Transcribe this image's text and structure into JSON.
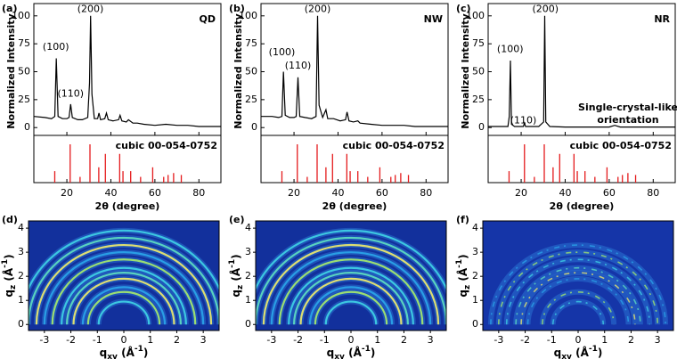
{
  "chart_data": [
    {
      "type": "line",
      "panel": "(a)",
      "sample": "QD",
      "peak_labels": [
        "(100)",
        "(110)",
        "(200)"
      ],
      "y_label": "Normalized Intensity",
      "x_label": "2θ (degree)",
      "color": "#000000",
      "x": [
        5,
        10,
        13,
        14.5,
        15.2,
        16,
        18,
        20,
        21,
        21.7,
        22.5,
        25,
        27,
        29.5,
        30.3,
        30.8,
        31.4,
        32.5,
        34,
        34.6,
        35.3,
        37.2,
        38,
        38.8,
        41,
        43.5,
        44.2,
        45,
        47,
        48,
        50,
        52,
        55,
        60,
        65,
        70,
        75,
        80,
        85,
        90
      ],
      "values": [
        10,
        9,
        8,
        10,
        62,
        10,
        8,
        8,
        9,
        21,
        9,
        7,
        7,
        9,
        40,
        100,
        30,
        8,
        8,
        13,
        7,
        8,
        13,
        7,
        6,
        7,
        11,
        6,
        5,
        7,
        4,
        4,
        3,
        2,
        3,
        2,
        2,
        1,
        1,
        1
      ],
      "xlim": [
        5,
        90
      ],
      "ylim": [
        -7,
        111
      ],
      "xticks": [
        20,
        40,
        60,
        80
      ],
      "yticks": [
        0,
        25,
        50,
        75,
        100
      ],
      "reference": {
        "name": "cubic 00-054-0752",
        "color": "#e41a1c",
        "ylim": [
          0,
          100
        ],
        "x": [
          14.5,
          21.5,
          26,
          30.5,
          34.5,
          37.5,
          44,
          45.5,
          49,
          53.5,
          59,
          64,
          66,
          68.5,
          72
        ],
        "values": [
          30,
          100,
          15,
          100,
          40,
          75,
          75,
          30,
          30,
          15,
          40,
          15,
          20,
          25,
          20
        ]
      }
    },
    {
      "type": "line",
      "panel": "(b)",
      "sample": "NW",
      "peak_labels": [
        "(100)",
        "(110)",
        "(200)"
      ],
      "y_label": "Normalized Intensity",
      "x_label": "2θ (degree)",
      "color": "#000000",
      "x": [
        5,
        10,
        13,
        14.5,
        15.2,
        16,
        18,
        20,
        21,
        21.8,
        22.6,
        25,
        28,
        30,
        30.7,
        31.4,
        33,
        34.5,
        35.3,
        38,
        41,
        43.4,
        44.1,
        45,
        47,
        49,
        50,
        55,
        60,
        65,
        70,
        75,
        80,
        85,
        90
      ],
      "values": [
        10,
        10,
        9,
        10,
        50,
        11,
        9,
        9,
        10,
        45,
        10,
        9,
        8,
        10,
        100,
        20,
        9,
        16,
        8,
        8,
        6,
        7,
        14,
        6,
        5,
        6,
        4,
        3,
        2,
        2,
        2,
        1,
        1,
        1,
        1
      ],
      "xlim": [
        5,
        90
      ],
      "ylim": [
        -7,
        111
      ],
      "xticks": [
        20,
        40,
        60,
        80
      ],
      "yticks": [
        0,
        25,
        50,
        75,
        100
      ],
      "reference": {
        "name": "cubic 00-054-0752",
        "color": "#e41a1c",
        "ylim": [
          0,
          100
        ],
        "x": [
          14.5,
          21.5,
          26,
          30.5,
          34.5,
          37.5,
          44,
          45.5,
          49,
          53.5,
          59,
          64,
          66,
          68.5,
          72
        ],
        "values": [
          30,
          100,
          15,
          100,
          40,
          75,
          75,
          30,
          30,
          15,
          40,
          15,
          20,
          25,
          20
        ]
      }
    },
    {
      "type": "line",
      "panel": "(c)",
      "sample": "NR",
      "peak_labels": [
        "(100)",
        "(110)",
        "(200)"
      ],
      "note": [
        "Single-crystal-like",
        "orientation"
      ],
      "y_label": "Normalized Intensity",
      "x_label": "2θ (degree)",
      "color": "#000000",
      "x": [
        5,
        10,
        14,
        14.6,
        15.1,
        15.6,
        17,
        21,
        21.5,
        22,
        28,
        30.2,
        30.7,
        31.2,
        33,
        40,
        50,
        60,
        62.5,
        65,
        75,
        90
      ],
      "values": [
        1,
        1,
        1,
        10,
        60,
        3,
        1,
        1,
        4,
        1,
        1,
        5,
        100,
        5,
        1,
        0.5,
        0.5,
        0.5,
        2,
        0.5,
        0.5,
        0.5
      ],
      "xlim": [
        5,
        90
      ],
      "ylim": [
        -7,
        111
      ],
      "xticks": [
        20,
        40,
        60,
        80
      ],
      "yticks": [
        0,
        25,
        50,
        75,
        100
      ],
      "reference": {
        "name": "cubic 00-054-0752",
        "color": "#e41a1c",
        "ylim": [
          0,
          100
        ],
        "x": [
          14.5,
          21.5,
          26,
          30.5,
          34.5,
          37.5,
          44,
          45.5,
          49,
          53.5,
          59,
          64,
          66,
          68.5,
          72
        ],
        "values": [
          30,
          100,
          15,
          100,
          40,
          75,
          75,
          30,
          30,
          15,
          40,
          15,
          20,
          25,
          20
        ]
      }
    },
    {
      "type": "image",
      "panel": "(d)",
      "x_label": [
        "q",
        "xy",
        " (Å",
        "-1",
        ")"
      ],
      "y_label": [
        "q",
        "z",
        " (Å",
        "-1",
        ")"
      ],
      "xlim": [
        -3.6,
        3.6
      ],
      "ylim": [
        -0.25,
        4.3
      ],
      "xticks": [
        -3,
        -2,
        -1,
        0,
        1,
        2,
        3
      ],
      "yticks": [
        0,
        1,
        2,
        3,
        4
      ],
      "rings": [
        0.95,
        1.35,
        1.55,
        1.9,
        2.15,
        2.35,
        2.7,
        3.0,
        3.3,
        3.6,
        3.9
      ]
    },
    {
      "type": "image",
      "panel": "(e)",
      "x_label": [
        "q",
        "xy",
        " (Å",
        "-1",
        ")"
      ],
      "y_label": [
        "q",
        "z",
        " (Å",
        "-1",
        ")"
      ],
      "xlim": [
        -3.6,
        3.6
      ],
      "ylim": [
        -0.25,
        4.3
      ],
      "xticks": [
        -3,
        -2,
        -1,
        0,
        1,
        2,
        3
      ],
      "yticks": [
        0,
        1,
        2,
        3,
        4
      ],
      "rings": [
        0.95,
        1.35,
        1.55,
        1.9,
        2.15,
        2.35,
        2.7,
        3.0,
        3.3,
        3.6,
        3.9
      ]
    },
    {
      "type": "image",
      "panel": "(f)",
      "x_label": [
        "q",
        "xy",
        " (Å",
        "-1",
        ")"
      ],
      "y_label": [
        "q",
        "z",
        " (Å",
        "-1",
        ")"
      ],
      "xlim": [
        -3.6,
        3.6
      ],
      "ylim": [
        -0.25,
        4.3
      ],
      "xticks": [
        -3,
        -2,
        -1,
        0,
        1,
        2,
        3
      ],
      "yticks": [
        0,
        1,
        2,
        3,
        4
      ],
      "rings": [
        0.95,
        1.35,
        1.9,
        2.15,
        2.35,
        2.7,
        3.0,
        3.3
      ]
    }
  ]
}
